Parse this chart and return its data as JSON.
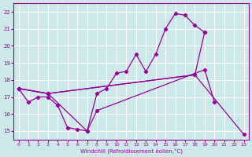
{
  "xlabel": "Windchill (Refroidissement éolien,°C)",
  "bg_color": "#cce8e8",
  "grid_color": "#ffffff",
  "line_color": "#990099",
  "xlim": [
    -0.5,
    23.5
  ],
  "ylim": [
    14.5,
    22.5
  ],
  "xticks": [
    0,
    1,
    2,
    3,
    4,
    5,
    6,
    7,
    8,
    9,
    10,
    11,
    12,
    13,
    14,
    15,
    16,
    17,
    18,
    19,
    20,
    21,
    22,
    23
  ],
  "yticks": [
    15,
    16,
    17,
    18,
    19,
    20,
    21,
    22
  ],
  "series": [
    {
      "points": [
        [
          0,
          17.5
        ],
        [
          1,
          16.7
        ],
        [
          2,
          17.0
        ],
        [
          3,
          17.0
        ],
        [
          4,
          16.5
        ],
        [
          5,
          15.2
        ],
        [
          6,
          15.1
        ],
        [
          7,
          15.0
        ],
        [
          8,
          17.2
        ],
        [
          9,
          17.5
        ],
        [
          10,
          18.4
        ],
        [
          11,
          18.5
        ],
        [
          12,
          19.5
        ],
        [
          13,
          18.5
        ],
        [
          14,
          19.5
        ],
        [
          15,
          21.0
        ],
        [
          16,
          21.9
        ],
        [
          17,
          21.8
        ],
        [
          18,
          21.2
        ],
        [
          19,
          20.8
        ]
      ]
    },
    {
      "points": [
        [
          0,
          17.5
        ],
        [
          3,
          17.2
        ],
        [
          18,
          18.3
        ],
        [
          19,
          20.8
        ]
      ]
    },
    {
      "points": [
        [
          0,
          17.5
        ],
        [
          3,
          17.2
        ],
        [
          18,
          18.3
        ],
        [
          23,
          14.8
        ]
      ]
    },
    {
      "points": [
        [
          0,
          17.5
        ],
        [
          3,
          17.2
        ],
        [
          7,
          15.0
        ],
        [
          8,
          16.2
        ],
        [
          19,
          18.6
        ],
        [
          20,
          16.7
        ]
      ]
    }
  ]
}
